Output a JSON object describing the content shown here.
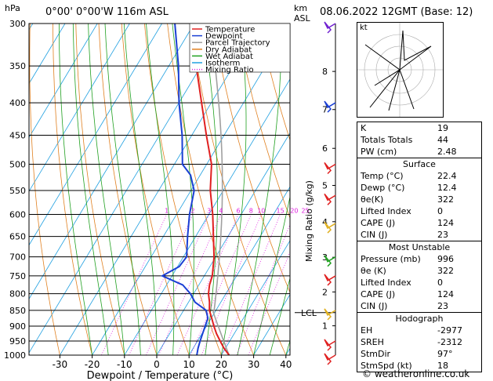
{
  "header": {
    "location": "0°00' 0°00'W 116m ASL",
    "datetime": "08.06.2022 12GMT (Base: 12)",
    "hpa_label": "hPa",
    "km_label": "km",
    "asl_label": "ASL"
  },
  "legend": [
    "Temperature",
    "Dewpoint",
    "Parcel Trajectory",
    "Dry Adiabat",
    "Wet Adiabat",
    "Isotherm",
    "Mixing Ratio"
  ],
  "colors": {
    "temperature": "#e02020",
    "dewpoint": "#1a3fd4",
    "parcel": "#a0a0a0",
    "dry_adiabat": "#e08020",
    "wet_adiabat": "#20a020",
    "isotherm": "#20a0e0",
    "mixing_ratio": "#e020e0"
  },
  "chart_data": {
    "type": "line",
    "title": "",
    "xlabel": "Dewpoint / Temperature (°C)",
    "ylabel_right": "Mixing Ratio (g/kg)",
    "x_ticks": [
      -30,
      -20,
      -10,
      0,
      10,
      20,
      30,
      40
    ],
    "pressure_levels": [
      300,
      350,
      400,
      450,
      500,
      550,
      600,
      650,
      700,
      750,
      800,
      850,
      900,
      950,
      1000
    ],
    "km_ticks": [
      {
        "km": "8",
        "p": 357
      },
      {
        "km": "7",
        "p": 410
      },
      {
        "km": "6",
        "p": 472
      },
      {
        "km": "5",
        "p": 540
      },
      {
        "km": "4",
        "p": 616
      },
      {
        "km": "3",
        "p": 701
      },
      {
        "km": "2",
        "p": 795
      },
      {
        "km": "1",
        "p": 899
      }
    ],
    "lcl": {
      "label": "LCL",
      "p": 857
    },
    "mixing_ratio_labels": [
      "1",
      "2",
      "3",
      "4",
      "6",
      "8",
      "10",
      "15",
      "20",
      "25"
    ],
    "mixing_ratio_values": [
      1,
      2,
      3,
      4,
      6,
      8,
      10,
      15,
      20,
      25
    ],
    "series": [
      {
        "name": "Temperature",
        "p": [
          1000,
          975,
          950,
          925,
          900,
          875,
          850,
          825,
          800,
          775,
          750,
          700,
          650,
          600,
          550,
          500,
          450,
          400,
          350,
          300
        ],
        "t": [
          22.4,
          19.5,
          17.0,
          14.5,
          12.3,
          10.2,
          8.0,
          6.5,
          4.6,
          3.3,
          2.5,
          -0.5,
          -4.5,
          -8.8,
          -14.0,
          -18.5,
          -25.5,
          -33.0,
          -41.5,
          -51.0
        ]
      },
      {
        "name": "Dewpoint",
        "p": [
          1000,
          975,
          950,
          925,
          900,
          875,
          850,
          825,
          800,
          775,
          750,
          725,
          700,
          650,
          600,
          550,
          520,
          500,
          450,
          400,
          350,
          300
        ],
        "t": [
          12.4,
          11.5,
          10.8,
          10.2,
          9.6,
          9.0,
          7.0,
          2.0,
          -1.0,
          -5.0,
          -13.0,
          -9.5,
          -9.0,
          -12.5,
          -16.0,
          -19.0,
          -23.0,
          -27.5,
          -33.0,
          -40.0,
          -47.0,
          -56.0
        ]
      }
    ]
  },
  "indices": [
    {
      "label": "K",
      "value": "19"
    },
    {
      "label": "Totals Totals",
      "value": "44"
    },
    {
      "label": "PW (cm)",
      "value": "2.48"
    }
  ],
  "surface": {
    "title": "Surface",
    "rows": [
      {
        "label": "Temp (°C)",
        "value": "22.4"
      },
      {
        "label": "Dewp (°C)",
        "value": "12.4"
      },
      {
        "label": "θe(K)",
        "value": "322"
      },
      {
        "label": "Lifted Index",
        "value": "0"
      },
      {
        "label": "CAPE (J)",
        "value": "124"
      },
      {
        "label": "CIN (J)",
        "value": "23"
      }
    ]
  },
  "most_unstable": {
    "title": "Most Unstable",
    "rows": [
      {
        "label": "Pressure (mb)",
        "value": "996"
      },
      {
        "label": "θe (K)",
        "value": "322"
      },
      {
        "label": "Lifted Index",
        "value": "0"
      },
      {
        "label": "CAPE (J)",
        "value": "124"
      },
      {
        "label": "CIN (J)",
        "value": "23"
      }
    ]
  },
  "hodograph": {
    "title": "Hodograph",
    "rows": [
      {
        "label": "EH",
        "value": "-2977"
      },
      {
        "label": "SREH",
        "value": "-2312"
      },
      {
        "label": "StmDir",
        "value": "97°"
      },
      {
        "label": "StmSpd (kt)",
        "value": "18"
      }
    ],
    "unit_label": "kt"
  },
  "footer": "© weatheronline.co.uk"
}
